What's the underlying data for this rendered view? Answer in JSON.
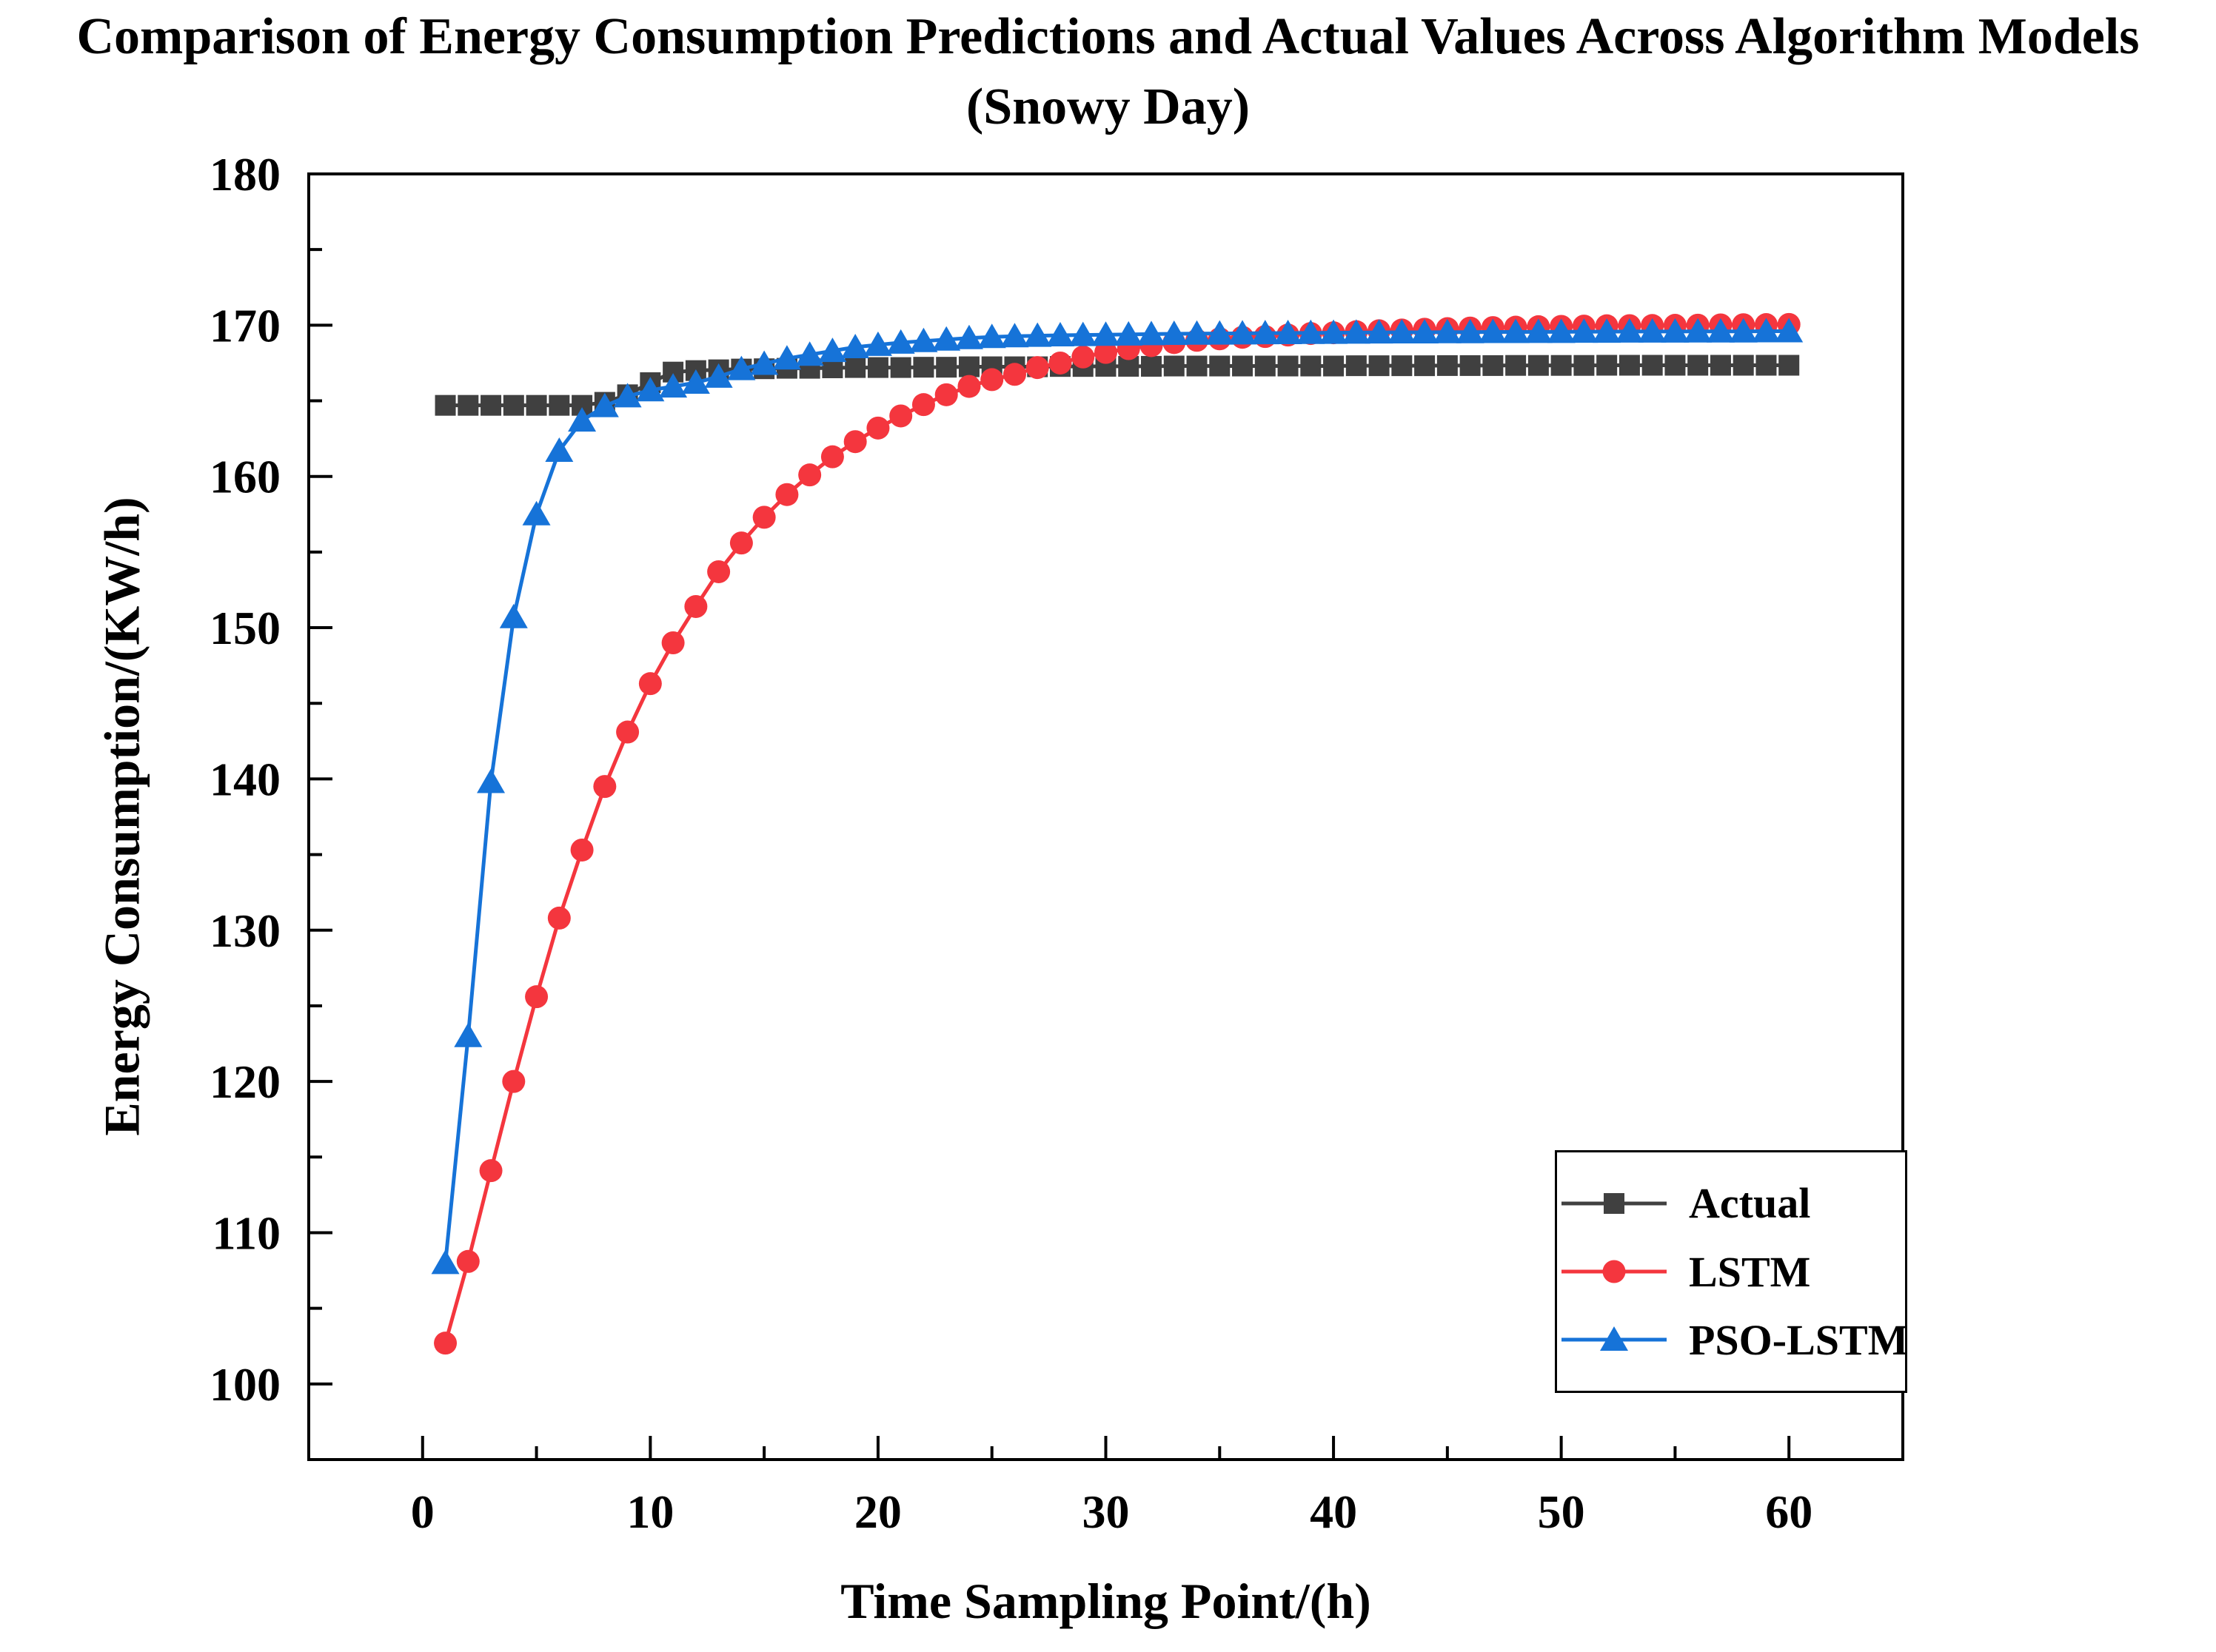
{
  "chart_data": {
    "type": "line",
    "title": "Comparison of Energy Consumption Predictions and Actual Values Across Algorithm Models (Snowy Day)",
    "title_line1": "Comparison of Energy Consumption Predictions and Actual Values Across Algorithm Models",
    "title_line2": "(Snowy Day)",
    "xlabel": "Time Sampling Point/(h)",
    "ylabel": "Energy Consumption/(KW/h)",
    "xlim": [
      -5,
      65
    ],
    "ylim": [
      95,
      180
    ],
    "x_ticks": [
      0,
      10,
      20,
      30,
      40,
      50,
      60
    ],
    "x_minor_ticks": [
      5,
      15,
      25,
      35,
      45,
      55
    ],
    "y_ticks": [
      100,
      110,
      120,
      130,
      140,
      150,
      160,
      170,
      180
    ],
    "y_minor_ticks": [
      105,
      115,
      125,
      135,
      145,
      155,
      165,
      175
    ],
    "grid": false,
    "legend_position": "lower-right-inset",
    "x": [
      1,
      2,
      3,
      4,
      5,
      6,
      7,
      8,
      9,
      10,
      11,
      12,
      13,
      14,
      15,
      16,
      17,
      18,
      19,
      20,
      21,
      22,
      23,
      24,
      25,
      26,
      27,
      28,
      29,
      30,
      31,
      32,
      33,
      34,
      35,
      36,
      37,
      38,
      39,
      40,
      41,
      42,
      43,
      44,
      45,
      46,
      47,
      48,
      49,
      50,
      51,
      52,
      53,
      54,
      55,
      56,
      57,
      58,
      59,
      60
    ],
    "series": [
      {
        "name": "Actual",
        "color": "#404040",
        "marker": "square",
        "values": [
          164.7,
          164.7,
          164.7,
          164.7,
          164.7,
          164.7,
          164.7,
          164.9,
          165.4,
          166.2,
          166.9,
          167.0,
          167.05,
          167.1,
          167.12,
          167.15,
          167.15,
          167.18,
          167.2,
          167.2,
          167.2,
          167.22,
          167.22,
          167.25,
          167.25,
          167.25,
          167.25,
          167.27,
          167.27,
          167.28,
          167.28,
          167.28,
          167.3,
          167.3,
          167.3,
          167.3,
          167.3,
          167.3,
          167.3,
          167.3,
          167.32,
          167.32,
          167.32,
          167.32,
          167.33,
          167.33,
          167.33,
          167.34,
          167.34,
          167.34,
          167.34,
          167.35,
          167.35,
          167.35,
          167.35,
          167.35,
          167.35,
          167.35,
          167.35,
          167.35
        ]
      },
      {
        "name": "LSTM",
        "color": "#F4363E",
        "marker": "circle",
        "values": [
          102.7,
          108.1,
          114.1,
          120.0,
          125.6,
          130.8,
          135.3,
          139.5,
          143.1,
          146.3,
          149.0,
          151.4,
          153.7,
          155.6,
          157.3,
          158.8,
          160.1,
          161.3,
          162.3,
          163.2,
          164.0,
          164.75,
          165.4,
          165.95,
          166.4,
          166.75,
          167.2,
          167.5,
          167.9,
          168.2,
          168.45,
          168.65,
          168.85,
          169.0,
          169.1,
          169.2,
          169.25,
          169.35,
          169.45,
          169.5,
          169.57,
          169.63,
          169.68,
          169.73,
          169.77,
          169.81,
          169.84,
          169.87,
          169.9,
          169.92,
          169.94,
          169.96,
          169.97,
          169.98,
          169.99,
          170.0,
          170.02,
          170.03,
          170.04,
          170.05
        ]
      },
      {
        "name": "PSO-LSTM",
        "color": "#1673D8",
        "marker": "triangle",
        "values": [
          108.0,
          123.0,
          139.8,
          150.7,
          157.5,
          161.7,
          163.7,
          164.65,
          165.3,
          165.7,
          165.95,
          166.2,
          166.6,
          167.1,
          167.45,
          167.8,
          168.05,
          168.3,
          168.55,
          168.7,
          168.85,
          168.95,
          169.05,
          169.15,
          169.22,
          169.27,
          169.3,
          169.33,
          169.35,
          169.37,
          169.39,
          169.41,
          169.43,
          169.44,
          169.45,
          169.46,
          169.47,
          169.48,
          169.49,
          169.5,
          169.51,
          169.52,
          169.53,
          169.53,
          169.54,
          169.54,
          169.55,
          169.55,
          169.56,
          169.56,
          169.57,
          169.57,
          169.58,
          169.58,
          169.58,
          169.59,
          169.59,
          169.59,
          169.6,
          169.6
        ]
      }
    ]
  }
}
